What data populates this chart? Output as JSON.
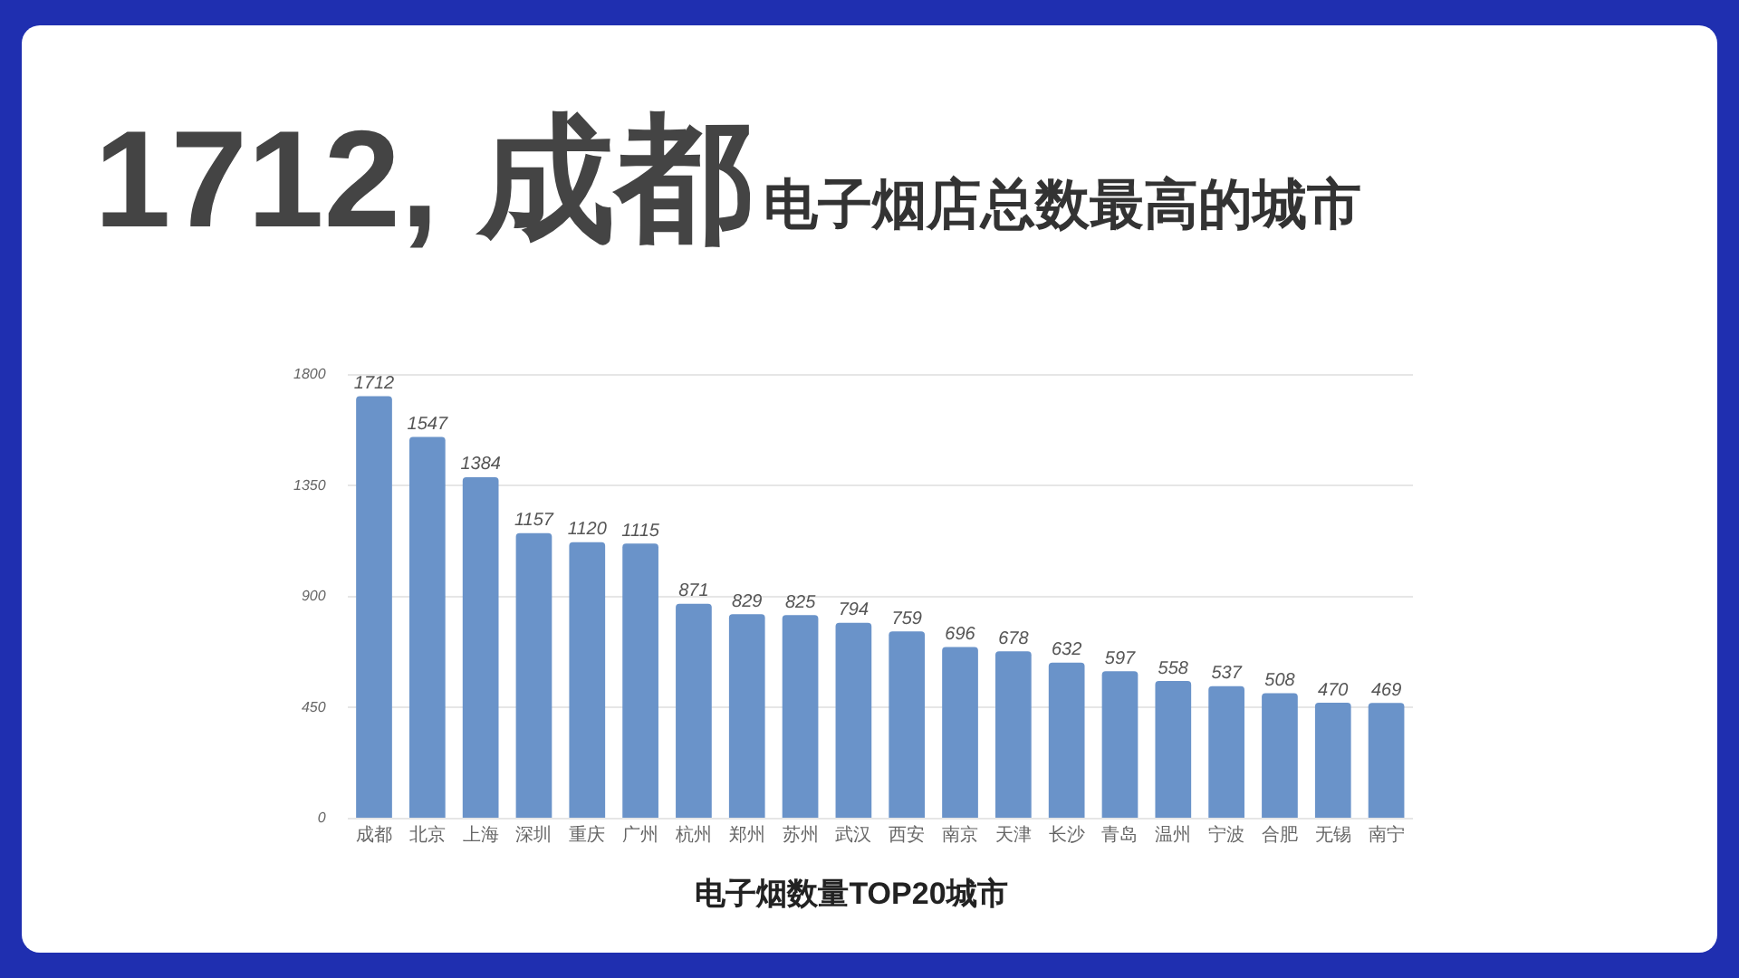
{
  "chart_data": {
    "type": "bar",
    "title": "1712, 成都",
    "subtitle": "电子烟店总数最高的城市",
    "xlabel": "电子烟数量TOP20城市",
    "categories": [
      "成都",
      "北京",
      "上海",
      "深圳",
      "重庆",
      "广州",
      "杭州",
      "郑州",
      "苏州",
      "武汉",
      "西安",
      "南京",
      "天津",
      "长沙",
      "青岛",
      "温州",
      "宁波",
      "合肥",
      "无锡",
      "南宁"
    ],
    "values": [
      1712,
      1547,
      1384,
      1157,
      1120,
      1115,
      871,
      829,
      825,
      794,
      759,
      696,
      678,
      632,
      597,
      558,
      537,
      508,
      470,
      469
    ],
    "color": "#6a93c9",
    "ylim": [
      0,
      1800
    ],
    "yticks": [
      0,
      450,
      900,
      1350,
      1800
    ],
    "grid": "y",
    "data_labels": true,
    "legend": false
  }
}
